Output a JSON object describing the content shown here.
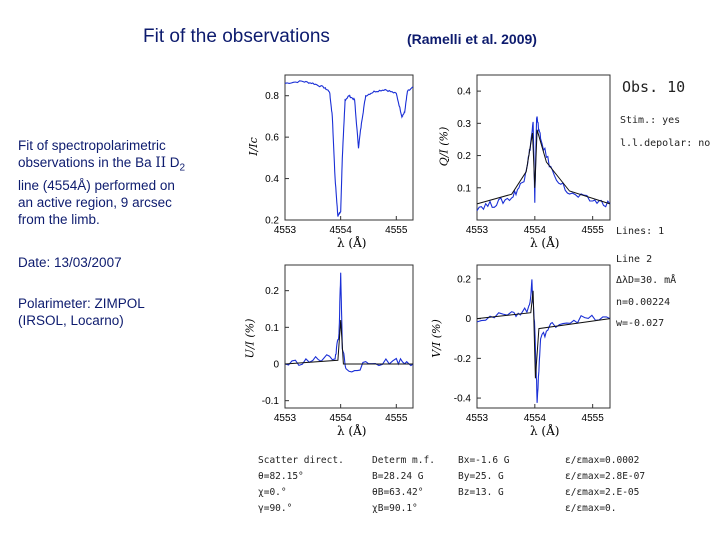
{
  "title": {
    "main": "Fit of the observations",
    "citation": "(Ramelli et al. 2009)"
  },
  "description": {
    "lines": [
      "Fit of spectropolarimetric",
      "observations in the Ba",
      "line (4554Å) performed on",
      "an active region,  9 arcsec",
      "from the limb."
    ],
    "ba_ion": "II",
    "d_label": "D",
    "d_sub": "2"
  },
  "date": "Date: 13/03/2007",
  "polarimeter": {
    "line1": "Polarimeter: ZIMPOL",
    "line2": "(IRSOL, Locarno)"
  },
  "right_panel": {
    "obs": "Obs. 10",
    "stim": "Stim.: yes",
    "lldepolar": "l.l.depolar: no",
    "lines": "Lines: 1",
    "line2": "Line 2",
    "delta_lambda": "ΔλD=30. mÅ",
    "n_value": "n=0.00224",
    "w_value": "w=-0.027"
  },
  "bottom_table": {
    "col1": [
      "Scatter direct.",
      "θ=82.15°",
      "χ=0.°",
      "γ=90.°"
    ],
    "col2": [
      "Determ m.f.",
      "B=28.24 G",
      "θB=63.42°",
      "χB=90.1°"
    ],
    "col3": [
      "",
      "Bx=-1.6 G",
      "By=25. G",
      "Bz=13. G"
    ],
    "col4": [
      "ε/εmax=0.0002",
      "ε/εmax=2.8E-07",
      "ε/εmax=2.E-05",
      "ε/εmax=0."
    ]
  },
  "chart_data": [
    {
      "type": "line",
      "title": "",
      "xlabel": "λ (Å)",
      "ylabel": "I/Ic",
      "xlim": [
        4553,
        4555.3
      ],
      "ylim": [
        0.2,
        0.9
      ],
      "x_ticks": [
        "4553",
        "4554",
        "4555"
      ],
      "y_ticks": [
        "0.2",
        "0.4",
        "0.6",
        "0.8"
      ],
      "series": [
        {
          "name": "observation",
          "values": [
            [
              4553.0,
              0.86
            ],
            [
              4553.3,
              0.87
            ],
            [
              4553.5,
              0.86
            ],
            [
              4553.7,
              0.84
            ],
            [
              4553.8,
              0.82
            ],
            [
              4553.85,
              0.7
            ],
            [
              4553.9,
              0.4
            ],
            [
              4553.95,
              0.22
            ],
            [
              4554.0,
              0.24
            ],
            [
              4554.03,
              0.5
            ],
            [
              4554.08,
              0.78
            ],
            [
              4554.15,
              0.8
            ],
            [
              4554.25,
              0.78
            ],
            [
              4554.32,
              0.55
            ],
            [
              4554.38,
              0.68
            ],
            [
              4554.45,
              0.8
            ],
            [
              4554.6,
              0.82
            ],
            [
              4554.8,
              0.83
            ],
            [
              4555.0,
              0.81
            ],
            [
              4555.1,
              0.7
            ],
            [
              4555.15,
              0.72
            ],
            [
              4555.2,
              0.82
            ],
            [
              4555.3,
              0.84
            ]
          ]
        }
      ]
    },
    {
      "type": "line",
      "title": "",
      "xlabel": "λ (Å)",
      "ylabel": "Q/I (%)",
      "xlim": [
        4553,
        4555.3
      ],
      "ylim": [
        0,
        0.45
      ],
      "x_ticks": [
        "4553",
        "4554",
        "4555"
      ],
      "y_ticks": [
        "0.1",
        "0.2",
        "0.3",
        "0.4"
      ],
      "series": [
        {
          "name": "observation",
          "values": [
            [
              4553.0,
              0.04
            ],
            [
              4553.3,
              0.05
            ],
            [
              4553.6,
              0.07
            ],
            [
              4553.8,
              0.12
            ],
            [
              4553.9,
              0.2
            ],
            [
              4553.97,
              0.3
            ],
            [
              4554.0,
              0.06
            ],
            [
              4554.03,
              0.32
            ],
            [
              4554.1,
              0.25
            ],
            [
              4554.3,
              0.15
            ],
            [
              4554.6,
              0.08
            ],
            [
              4555.0,
              0.06
            ],
            [
              4555.3,
              0.05
            ]
          ]
        },
        {
          "name": "fit",
          "values": [
            [
              4553.0,
              0.05
            ],
            [
              4553.6,
              0.08
            ],
            [
              4553.85,
              0.15
            ],
            [
              4553.96,
              0.27
            ],
            [
              4554.0,
              0.1
            ],
            [
              4554.04,
              0.28
            ],
            [
              4554.2,
              0.18
            ],
            [
              4554.6,
              0.09
            ],
            [
              4555.3,
              0.05
            ]
          ]
        }
      ]
    },
    {
      "type": "line",
      "title": "",
      "xlabel": "λ (Å)",
      "ylabel": "U/I (%)",
      "xlim": [
        4553,
        4555.3
      ],
      "ylim": [
        -0.12,
        0.27
      ],
      "x_ticks": [
        "4553",
        "4554",
        "4555"
      ],
      "y_ticks": [
        "-0.1",
        "0",
        "0.1",
        "0.2"
      ],
      "series": [
        {
          "name": "observation",
          "values": [
            [
              4553.0,
              0.0
            ],
            [
              4553.5,
              0.01
            ],
            [
              4553.9,
              0.02
            ],
            [
              4553.97,
              0.08
            ],
            [
              4554.0,
              0.24
            ],
            [
              4554.03,
              0.05
            ],
            [
              4554.1,
              -0.02
            ],
            [
              4554.5,
              0.0
            ],
            [
              4555.0,
              0.01
            ],
            [
              4555.3,
              0.0
            ]
          ]
        },
        {
          "name": "fit",
          "values": [
            [
              4553.0,
              0.0
            ],
            [
              4553.95,
              0.01
            ],
            [
              4554.0,
              0.12
            ],
            [
              4554.05,
              0.0
            ],
            [
              4555.3,
              0.0
            ]
          ]
        }
      ]
    },
    {
      "type": "line",
      "title": "",
      "xlabel": "λ (Å)",
      "ylabel": "V/I (%)",
      "xlim": [
        4553,
        4555.3
      ],
      "ylim": [
        -0.45,
        0.27
      ],
      "x_ticks": [
        "4553",
        "4554",
        "4555"
      ],
      "y_ticks": [
        "-0.4",
        "-0.2",
        "0",
        "0.2"
      ],
      "series": [
        {
          "name": "observation",
          "values": [
            [
              4553.0,
              0.0
            ],
            [
              4553.6,
              0.02
            ],
            [
              4553.9,
              0.05
            ],
            [
              4553.95,
              0.18
            ],
            [
              4554.0,
              -0.05
            ],
            [
              4554.04,
              -0.42
            ],
            [
              4554.1,
              -0.1
            ],
            [
              4554.3,
              -0.03
            ],
            [
              4554.8,
              0.0
            ],
            [
              4555.3,
              0.0
            ]
          ]
        },
        {
          "name": "fit",
          "values": [
            [
              4553.0,
              0.0
            ],
            [
              4553.93,
              0.03
            ],
            [
              4553.97,
              0.14
            ],
            [
              4554.01,
              -0.3
            ],
            [
              4554.07,
              -0.05
            ],
            [
              4555.3,
              0.0
            ]
          ]
        }
      ]
    }
  ]
}
